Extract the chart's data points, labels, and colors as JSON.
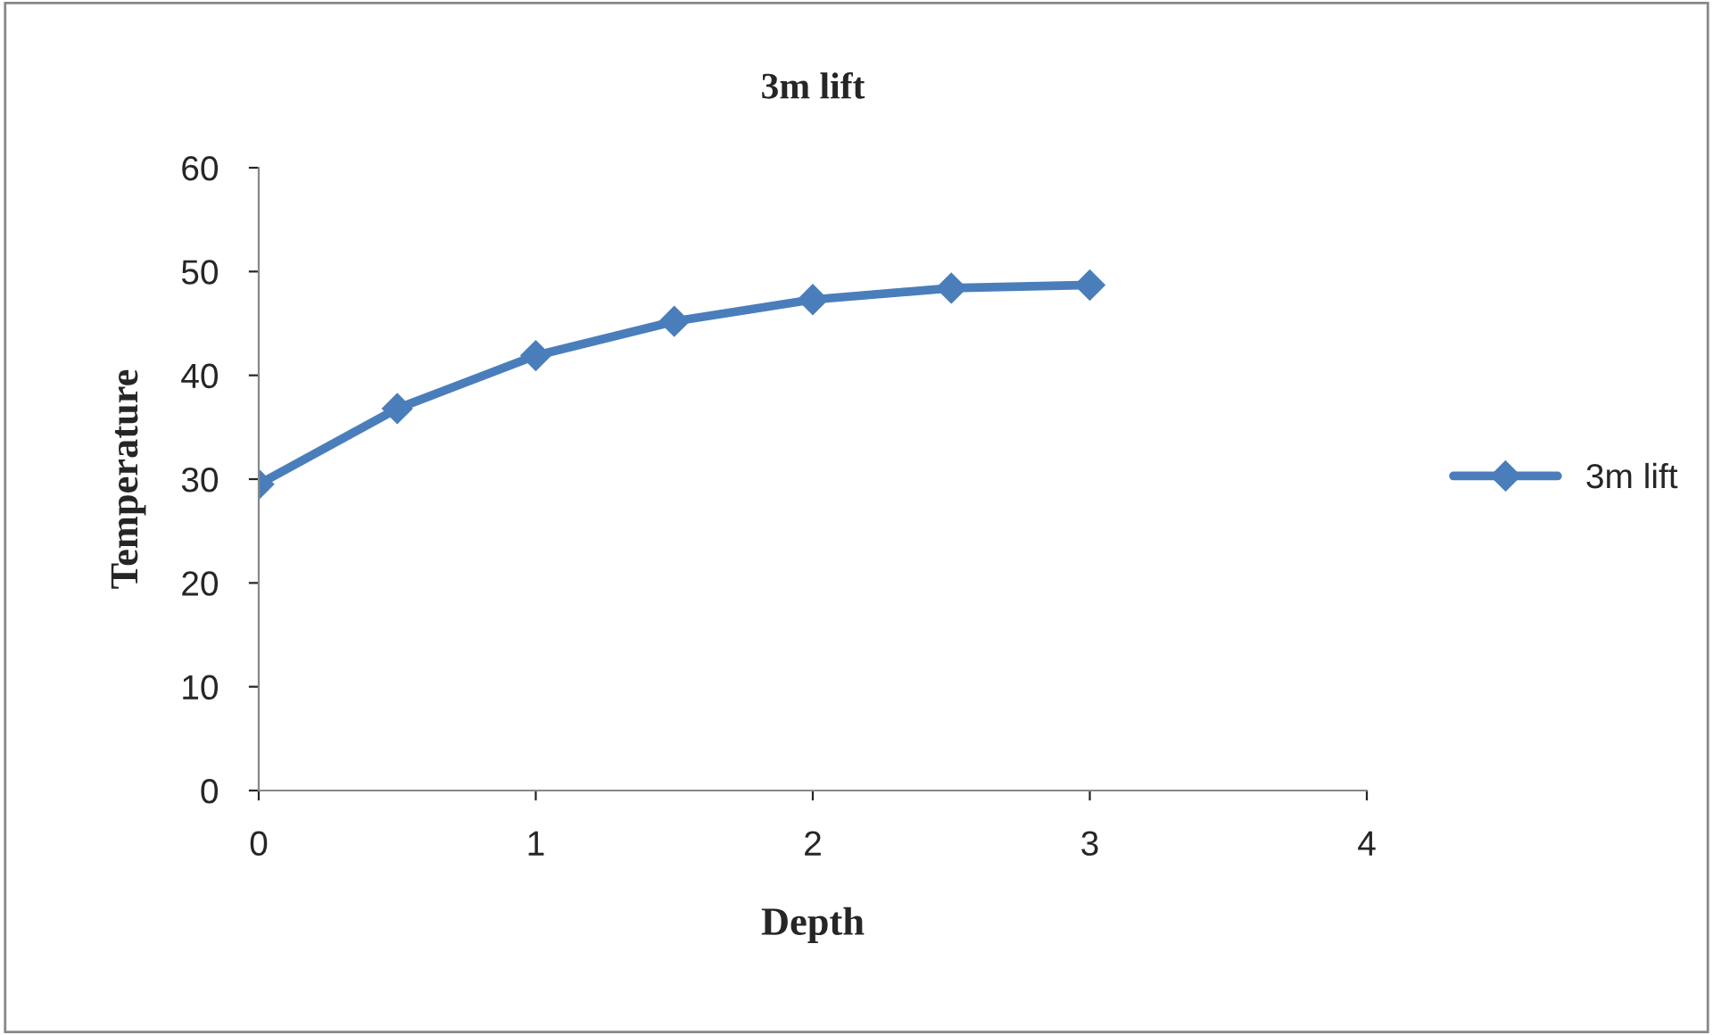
{
  "chart_data": {
    "type": "line",
    "title": "3m lift",
    "xlabel": "Depth",
    "ylabel": "Temperature",
    "x": [
      0,
      0.5,
      1,
      1.5,
      2,
      2.5,
      3
    ],
    "series": [
      {
        "name": "3m lift",
        "color": "#4a7ebb",
        "values": [
          29.5,
          36.8,
          41.9,
          45.2,
          47.3,
          48.4,
          48.7
        ]
      }
    ],
    "xlim": [
      0,
      4
    ],
    "xticks": [
      0,
      1,
      2,
      3,
      4
    ],
    "ylim": [
      0,
      60
    ],
    "yticks": [
      0,
      10,
      20,
      30,
      40,
      50,
      60
    ],
    "grid": false,
    "legend": "right",
    "marker": "diamond",
    "line_style": "solid"
  }
}
